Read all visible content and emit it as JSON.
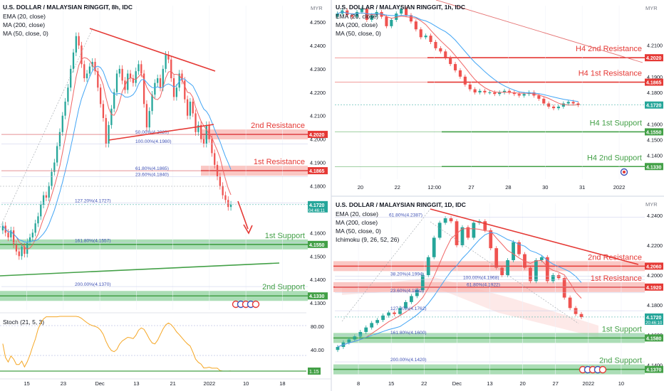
{
  "colors": {
    "green_candle": "#26a69a",
    "red_candle": "#ef5350",
    "ema": "#f06464",
    "ma200": "#e57373",
    "ma50": "#42a5f5",
    "resistance": "#e53935",
    "support": "#43a047",
    "resistance_zone": "#f8b4b0",
    "support_zone": "#8fd19e",
    "stoch": "#f5a623",
    "divider": "#d8dde6"
  },
  "panels": [
    {
      "id": "p8h",
      "title": "U.S. DOLLAR / MALAYSIAN RINGGIT, 8h, IDC",
      "indicators": [
        "EMA (20, close)",
        "MA (200, close)",
        "MA (50, close, 0)"
      ],
      "currency": "MYR",
      "price_labels": [
        "4.2500",
        "4.2400",
        "4.2300",
        "4.2200",
        "4.2100",
        "4.2000",
        "4.1900",
        "4.1800",
        "4.1700",
        "4.1600",
        "4.1500",
        "4.1400",
        "4.1300"
      ],
      "badges": [
        {
          "text": "4.2020",
          "kind": "resistance"
        },
        {
          "text": "4.1865",
          "kind": "resistance"
        },
        {
          "text": "4.1720",
          "kind": "last",
          "sub": "04:46:11"
        },
        {
          "text": "4.1550",
          "kind": "support"
        },
        {
          "text": "4.1330",
          "kind": "support"
        }
      ],
      "levels": [
        {
          "label": "2nd Resistance",
          "kind": "resistance"
        },
        {
          "label": "1st Resistance",
          "kind": "resistance"
        },
        {
          "label": "1st Support",
          "kind": "support"
        },
        {
          "label": "2nd Support",
          "kind": "support"
        }
      ],
      "fib_labels": [
        "50.00%(4.2020)",
        "100.00%(4.1980)",
        "61.80%(4.1865)",
        "23.60%(4.1840)",
        "127.20%(4.1727)",
        "161.80%(4.1557)",
        "200.00%(4.1370)"
      ],
      "x_labels": [
        "15",
        "23",
        "Dec",
        "13",
        "21",
        "2022",
        "10",
        "18"
      ],
      "stoch": {
        "label": "Stoch (21, 5, 3)",
        "scale": [
          "80.00",
          "40.00"
        ],
        "badge": "1.15"
      }
    },
    {
      "id": "p1h",
      "title": "U.S. DOLLAR / MALAYSIAN RINGGIT, 1h, IDC",
      "indicators": [
        "EMA (20, close)",
        "MA (200, close)",
        "MA (50, close, 0)"
      ],
      "currency": "MYR",
      "price_labels": [
        "4.2100",
        "4.1900",
        "4.1800",
        "4.1600",
        "4.1500",
        "4.1400"
      ],
      "badges": [
        {
          "text": "4.2020",
          "kind": "resistance"
        },
        {
          "text": "4.1865",
          "kind": "resistance"
        },
        {
          "text": "4.1720",
          "kind": "last",
          "sub": ""
        },
        {
          "text": "4.1550",
          "kind": "support"
        },
        {
          "text": "4.1330",
          "kind": "support"
        }
      ],
      "levels": [
        {
          "label": "H4 2nd Resistance",
          "kind": "resistance"
        },
        {
          "label": "H4 1st Resistance",
          "kind": "resistance"
        },
        {
          "label": "H4 1st Support",
          "kind": "support"
        },
        {
          "label": "H4 2nd Support",
          "kind": "support"
        }
      ],
      "x_labels": [
        "20",
        "22",
        "12:00",
        "27",
        "28",
        "30",
        "31",
        "2022"
      ]
    },
    {
      "id": "p1d",
      "title": "U.S. DOLLAR / MALAYSIAN RINGGIT, 1D, IDC",
      "indicators": [
        "EMA (20, close)",
        "MA (200, close)",
        "MA (50, close, 0)",
        "Ichimoku (9, 26, 52, 26)"
      ],
      "currency": "MYR",
      "price_labels": [
        "4.2400",
        "4.2200",
        "4.2000",
        "4.1800",
        "4.1600",
        "4.1400"
      ],
      "badges": [
        {
          "text": "4.2060",
          "kind": "resistance"
        },
        {
          "text": "4.1920",
          "kind": "resistance"
        },
        {
          "text": "4.1720",
          "kind": "last",
          "sub": "20:46:10"
        },
        {
          "text": "4.1580",
          "kind": "support"
        },
        {
          "text": "4.1370",
          "kind": "support"
        }
      ],
      "levels": [
        {
          "label": "2nd Resistance",
          "kind": "resistance"
        },
        {
          "label": "1st Resistance",
          "kind": "resistance"
        },
        {
          "label": "1st Support",
          "kind": "support"
        },
        {
          "label": "2nd Support",
          "kind": "support"
        }
      ],
      "fib_labels": [
        "61.80%(4.2387)",
        "38.20%(4.1994)",
        "23.60%(4.1882)",
        "100.00%(4.1968)",
        "61.80%(4.1922)",
        "127.20%(4.1762)",
        "161.80%(4.1600)",
        "200.00%(4.1420)"
      ],
      "x_labels": [
        "8",
        "15",
        "22",
        "Dec",
        "13",
        "20",
        "27",
        "2022",
        "10"
      ]
    }
  ],
  "chart_data": [
    {
      "type": "candlestick",
      "title": "U.S. DOLLAR / MALAYSIAN RINGGIT, 8h, IDC",
      "ylim": [
        4.127,
        4.257
      ],
      "last": 4.172,
      "levels": {
        "2nd Resistance": 4.202,
        "1st Resistance": 4.1865,
        "1st Support": 4.155,
        "2nd Support": 4.133
      },
      "closes": [
        4.163,
        4.16,
        4.158,
        4.161,
        4.155,
        4.152,
        4.15,
        4.154,
        4.151,
        4.156,
        4.158,
        4.16,
        4.164,
        4.167,
        4.172,
        4.176,
        4.175,
        4.18,
        4.186,
        4.19,
        4.197,
        4.203,
        4.21,
        4.216,
        4.222,
        4.23,
        4.237,
        4.244,
        4.24,
        4.232,
        4.226,
        4.228,
        4.231,
        4.233,
        4.229,
        4.222,
        4.215,
        4.209,
        4.198,
        4.206,
        4.213,
        4.22,
        4.228,
        4.23,
        4.225,
        4.221,
        4.228,
        4.226,
        4.224,
        4.229,
        4.232,
        4.228,
        4.215,
        4.205,
        4.212,
        4.219,
        4.224,
        4.226,
        4.222,
        4.23,
        4.236,
        4.234,
        4.226,
        4.218,
        4.222,
        4.228,
        4.225,
        4.217,
        4.21,
        4.216,
        4.211,
        4.203,
        4.206,
        4.2,
        4.198,
        4.206,
        4.2,
        4.194,
        4.189,
        4.184,
        4.18,
        4.176,
        4.174,
        4.171,
        4.172
      ],
      "ema20_end": 4.1868,
      "stoch_range": [
        0,
        100
      ]
    },
    {
      "type": "candlestick",
      "title": "U.S. DOLLAR / MALAYSIAN RINGGIT, 1h, IDC",
      "ylim": [
        4.125,
        4.235
      ],
      "last": 4.172,
      "levels": {
        "H4 2nd Resistance": 4.202,
        "H4 1st Resistance": 4.1865,
        "H4 1st Support": 4.155,
        "H4 2nd Support": 4.133
      },
      "closes": [
        4.23,
        4.232,
        4.229,
        4.228,
        4.231,
        4.233,
        4.226,
        4.229,
        4.231,
        4.228,
        4.222,
        4.226,
        4.23,
        4.233,
        4.229,
        4.225,
        4.22,
        4.215,
        4.216,
        4.212,
        4.208,
        4.206,
        4.202,
        4.198,
        4.194,
        4.19,
        4.185,
        4.182,
        4.18,
        4.181,
        4.18,
        4.18,
        4.179,
        4.18,
        4.181,
        4.18,
        4.179,
        4.178,
        4.179,
        4.18,
        4.178,
        4.176,
        4.173,
        4.171,
        4.17,
        4.171,
        4.173,
        4.174,
        4.173,
        4.172
      ]
    },
    {
      "type": "candlestick",
      "title": "U.S. DOLLAR / MALAYSIAN RINGGIT, 1D, IDC",
      "ylim": [
        4.133,
        4.248
      ],
      "last": 4.172,
      "levels": {
        "2nd Resistance": 4.206,
        "1st Resistance": 4.192,
        "1st Support": 4.158,
        "2nd Support": 4.137
      },
      "closes": [
        4.152,
        4.155,
        4.157,
        4.159,
        4.162,
        4.165,
        4.168,
        4.17,
        4.173,
        4.175,
        4.174,
        4.178,
        4.182,
        4.186,
        4.19,
        4.2,
        4.212,
        4.225,
        4.235,
        4.238,
        4.236,
        4.22,
        4.232,
        4.225,
        4.235,
        4.236,
        4.23,
        4.218,
        4.205,
        4.2,
        4.21,
        4.222,
        4.214,
        4.205,
        4.196,
        4.21,
        4.212,
        4.196,
        4.2,
        4.198,
        4.185,
        4.178,
        4.174,
        4.172
      ]
    }
  ]
}
